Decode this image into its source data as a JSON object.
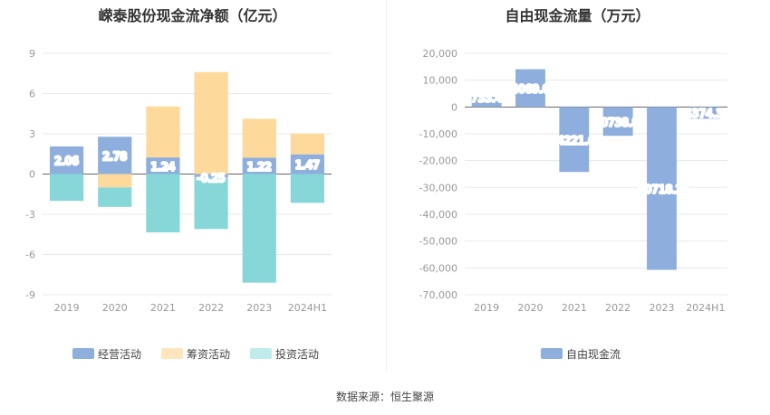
{
  "chart_data": [
    {
      "type": "bar",
      "stacked": true,
      "title": "嵘泰股份现金流净额（亿元）",
      "categories": [
        "2019",
        "2020",
        "2021",
        "2022",
        "2023",
        "2024H1"
      ],
      "series": [
        {
          "name": "经营活动",
          "color": "#8eaedd",
          "values": [
            2.06,
            2.78,
            1.24,
            -0.25,
            1.22,
            1.47
          ]
        },
        {
          "name": "筹资活动",
          "color": "#fdd99b",
          "values": [
            0.0,
            -1.0,
            3.8,
            7.6,
            2.9,
            1.55
          ]
        },
        {
          "name": "投资活动",
          "color": "#87d7d9",
          "values": [
            -2.0,
            -1.45,
            -4.35,
            -3.85,
            -8.1,
            -2.15
          ]
        }
      ],
      "data_labels": [
        "2.06",
        "2.78",
        "1.24",
        "-0.25",
        "1.22",
        "1.47"
      ],
      "yticks": [
        "9",
        "6",
        "3",
        "0",
        "-3",
        "-6",
        "-9"
      ],
      "ylim": [
        -9,
        9
      ]
    },
    {
      "type": "bar",
      "title": "自由现金流量（万元）",
      "categories": [
        "2019",
        "2020",
        "2021",
        "2022",
        "2023",
        "2024H1"
      ],
      "series": [
        {
          "name": "自由现金流",
          "color": "#8eaedd",
          "values": [
            3733.49,
            14069.09,
            -24221.65,
            -10738.85,
            -60718.25,
            -4374.39
          ]
        }
      ],
      "data_labels": [
        "3733.49",
        "14069.09",
        "-24221.65",
        "-10738.85",
        "-60718.25",
        "-4374.39"
      ],
      "yticks": [
        "20,000",
        "10,000",
        "0",
        "-10,000",
        "-20,000",
        "-30,000",
        "-40,000",
        "-50,000",
        "-60,000",
        "-70,000"
      ],
      "ylim": [
        -70000,
        20000
      ]
    }
  ],
  "footer": {
    "source": "数据来源：恒生聚源"
  }
}
